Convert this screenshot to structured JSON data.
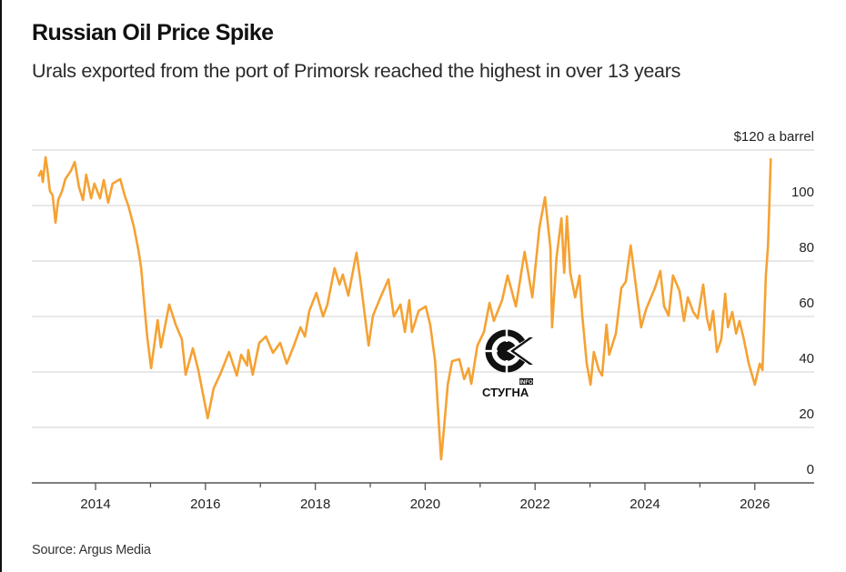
{
  "header": {
    "title": "Russian Oil Price Spike",
    "subtitle": "Urals exported from the port of Primorsk reached the highest in over 13 years"
  },
  "footer": {
    "source": "Source: Argus Media"
  },
  "watermark": {
    "icon": "stugna-crosshair-logo-icon",
    "text": "СТУГНА",
    "badge": "INFO"
  },
  "colors": {
    "series": "#f5a233",
    "grid": "#d9d9d9",
    "axis": "#555555",
    "text": "#1a1a1a"
  },
  "chart_data": {
    "type": "line",
    "title": "Russian Oil Price Spike",
    "subtitle": "Urals exported from the port of Primorsk reached the highest in over 13 years",
    "xlabel": "",
    "ylabel": "$ a barrel",
    "y_unit_label": "$120 a barrel",
    "ylim": [
      0,
      120
    ],
    "xlim": [
      2012.84,
      2027.08
    ],
    "yticks": [
      0,
      20,
      40,
      60,
      80,
      100,
      120
    ],
    "ytick_labels": [
      "0",
      "20",
      "40",
      "60",
      "80",
      "100",
      "$120 a barrel"
    ],
    "xticks_major": [
      2014,
      2016,
      2018,
      2020,
      2022,
      2024,
      2026
    ],
    "xticks_minor": [
      2015,
      2017,
      2019,
      2021,
      2023,
      2025
    ],
    "xtick_labels": [
      "2014",
      "2016",
      "2018",
      "2020",
      "2022",
      "2024",
      "2026"
    ],
    "grid": true,
    "legend": "none",
    "y_axis_position": "right",
    "source": "Source: Argus Media",
    "series": [
      {
        "name": "Urals (Primorsk)",
        "color": "#f5a233",
        "x": [
          2012.97,
          2013.01,
          2013.04,
          2013.09,
          2013.12,
          2013.17,
          2013.22,
          2013.27,
          2013.32,
          2013.39,
          2013.45,
          2013.55,
          2013.62,
          2013.7,
          2013.77,
          2013.83,
          2013.92,
          2013.98,
          2014.08,
          2014.15,
          2014.23,
          2014.31,
          2014.45,
          2014.53,
          2014.6,
          2014.7,
          2014.78,
          2014.83,
          2014.88,
          2014.94,
          2015.01,
          2015.13,
          2015.19,
          2015.34,
          2015.46,
          2015.57,
          2015.64,
          2015.77,
          2015.87,
          2016.04,
          2016.15,
          2016.28,
          2016.43,
          2016.57,
          2016.65,
          2016.76,
          2016.78,
          2016.86,
          2016.98,
          2017.1,
          2017.23,
          2017.36,
          2017.48,
          2017.61,
          2017.73,
          2017.81,
          2017.89,
          2018.02,
          2018.14,
          2018.22,
          2018.35,
          2018.44,
          2018.5,
          2018.6,
          2018.75,
          2018.83,
          2018.97,
          2019.05,
          2019.18,
          2019.33,
          2019.43,
          2019.55,
          2019.63,
          2019.71,
          2019.76,
          2019.88,
          2020.01,
          2020.09,
          2020.18,
          2020.26,
          2020.29,
          2020.34,
          2020.41,
          2020.49,
          2020.62,
          2020.71,
          2020.79,
          2020.84,
          2020.95,
          2021.07,
          2021.17,
          2021.25,
          2021.4,
          2021.5,
          2021.65,
          2021.81,
          2021.95,
          2022.08,
          2022.18,
          2022.28,
          2022.31,
          2022.39,
          2022.48,
          2022.53,
          2022.58,
          2022.64,
          2022.73,
          2022.81,
          2022.86,
          2022.94,
          2023.01,
          2023.07,
          2023.16,
          2023.22,
          2023.3,
          2023.35,
          2023.47,
          2023.57,
          2023.65,
          2023.74,
          2023.82,
          2023.93,
          2024.02,
          2024.18,
          2024.28,
          2024.35,
          2024.43,
          2024.51,
          2024.63,
          2024.71,
          2024.78,
          2024.88,
          2024.96,
          2025.06,
          2025.13,
          2025.18,
          2025.24,
          2025.31,
          2025.39,
          2025.46,
          2025.51,
          2025.59,
          2025.66,
          2025.72,
          2025.8,
          2025.89,
          2026.0,
          2026.09,
          2026.14,
          2026.2,
          2026.24,
          2026.29
        ],
        "values": [
          110.8,
          112.5,
          108.5,
          117.4,
          113.4,
          105.2,
          103.6,
          93.8,
          102,
          105.2,
          109.5,
          112.5,
          115.7,
          106.6,
          102,
          111.1,
          102.6,
          107.9,
          102.6,
          109.2,
          101,
          107.9,
          109.5,
          103.6,
          99.7,
          92.1,
          83.9,
          77.4,
          65.9,
          52.8,
          41.3,
          58.7,
          48.9,
          64.3,
          57,
          51.8,
          39,
          48.5,
          40.7,
          23.3,
          34.1,
          39.7,
          47.2,
          38.7,
          46.2,
          42.3,
          47.9,
          39,
          50.5,
          52.8,
          46.9,
          50.5,
          43,
          49.5,
          56.1,
          52.8,
          62,
          68.5,
          60,
          64.3,
          77.4,
          71.5,
          75.1,
          67.5,
          83,
          71.5,
          49.5,
          60.3,
          66.6,
          73.4,
          60,
          64.3,
          54.4,
          65.9,
          54.4,
          62,
          63.6,
          57,
          43.9,
          17.7,
          8.5,
          19,
          35.4,
          43.9,
          44.6,
          37.4,
          41.3,
          35.7,
          49.5,
          54.4,
          64.9,
          58.4,
          65.9,
          74.8,
          63.6,
          83.3,
          66.9,
          92.1,
          103,
          84.6,
          56.1,
          81.3,
          95.4,
          75.7,
          96.1,
          75.7,
          66.9,
          74.8,
          60.3,
          43,
          35.4,
          47.2,
          40.7,
          38.7,
          57,
          46.2,
          53.8,
          70.2,
          72.5,
          85.6,
          73.4,
          56.1,
          62.6,
          70.2,
          76.4,
          63.6,
          60.3,
          74.8,
          69.2,
          58.4,
          66.9,
          61.6,
          59.3,
          71.5,
          59.3,
          55.1,
          62,
          47.2,
          51.8,
          68.2,
          56.1,
          61.6,
          53.8,
          58.4,
          51.8,
          43,
          35.4,
          43,
          40.7,
          74.8,
          85.6,
          116.7
        ]
      }
    ]
  }
}
